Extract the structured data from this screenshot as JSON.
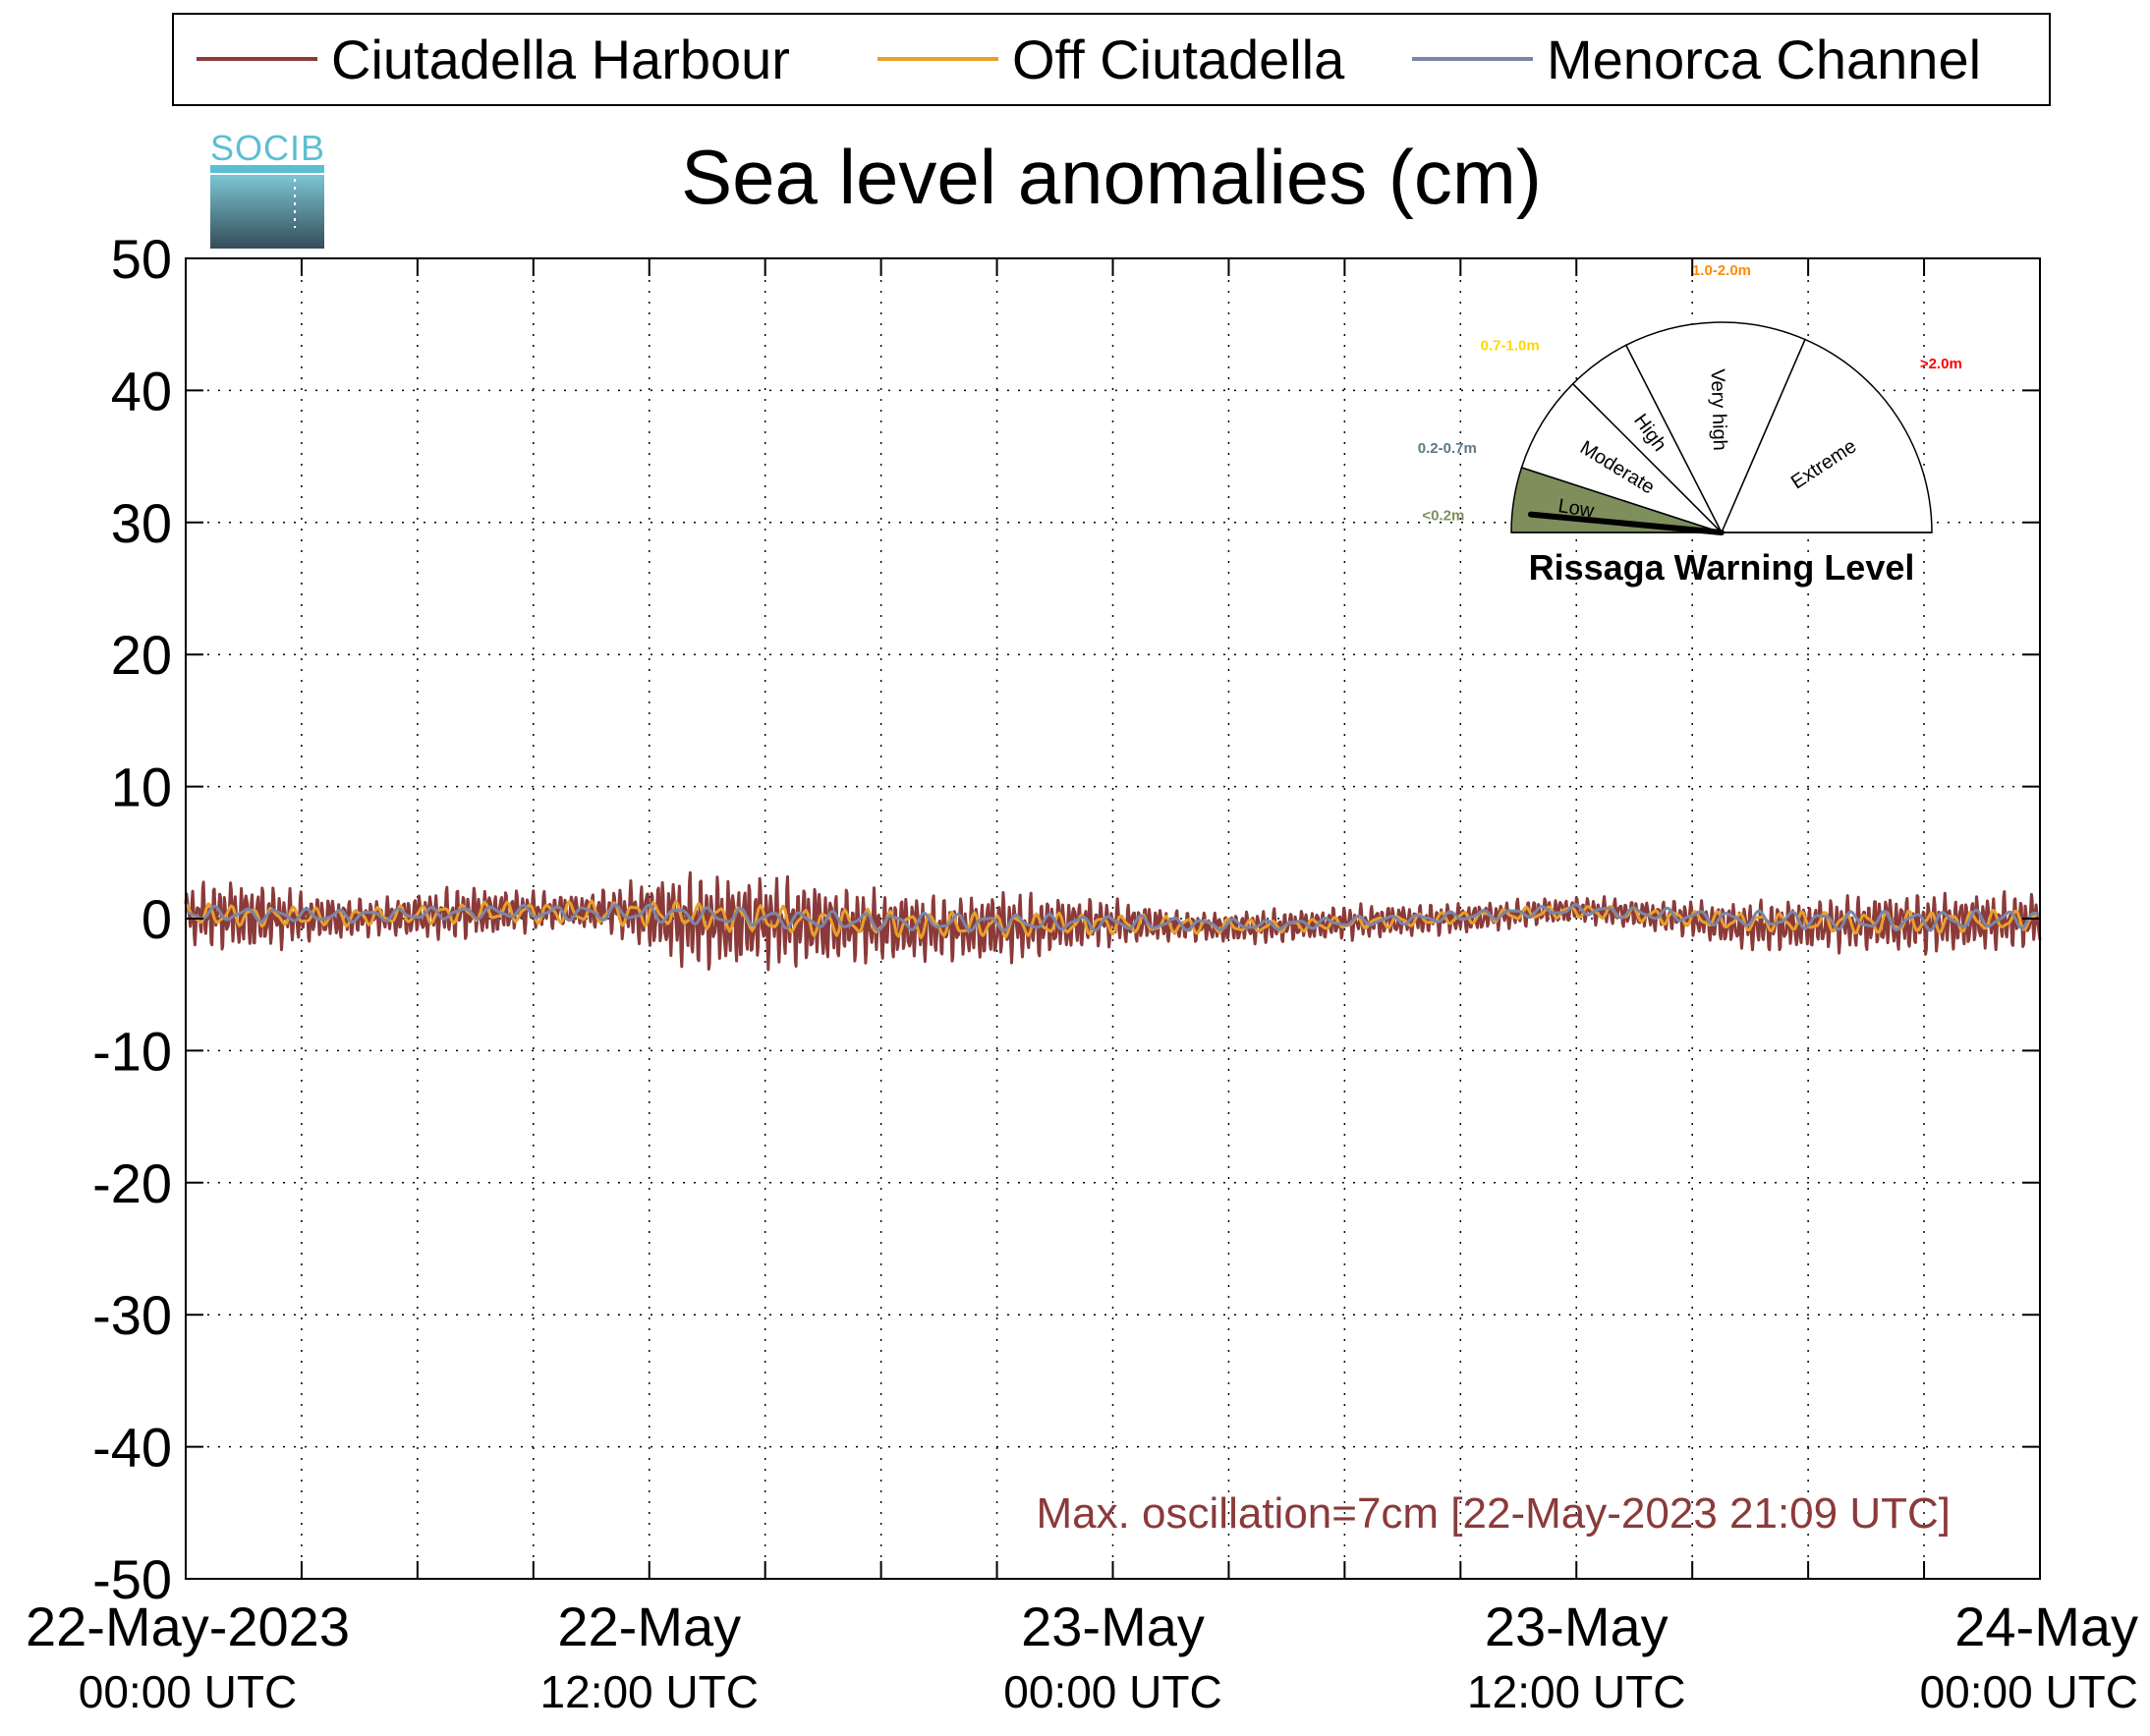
{
  "chart_data": {
    "type": "line",
    "title": "Sea level anomalies (cm)",
    "ylim": [
      -50,
      50
    ],
    "yticks": [
      50,
      40,
      30,
      20,
      10,
      0,
      -10,
      -20,
      -30,
      -40,
      -50
    ],
    "y_tick_labels": [
      "50",
      "40",
      "30",
      "20",
      "10",
      "0",
      "-10",
      "-20",
      "-30",
      "-40",
      "-50"
    ],
    "xlim_hours": [
      0,
      48
    ],
    "x_tick_hours": [
      0,
      3,
      6,
      9,
      12,
      15,
      18,
      21,
      24,
      27,
      30,
      33,
      36,
      39,
      42,
      45,
      48
    ],
    "x_labels": [
      {
        "hour": 0,
        "line1": "22-May-2023",
        "line2": "00:00 UTC"
      },
      {
        "hour": 12,
        "line1": "22-May",
        "line2": "12:00 UTC"
      },
      {
        "hour": 24,
        "line1": "23-May",
        "line2": "00:00 UTC"
      },
      {
        "hour": 36,
        "line1": "23-May",
        "line2": "12:00 UTC"
      },
      {
        "hour": 48,
        "line1": "24-May",
        "line2": "00:00 UTC"
      }
    ],
    "grid": true,
    "legend_position": "top",
    "series": [
      {
        "name": "Ciutadella Harbour",
        "color": "#8b3a3a",
        "x_hours": [
          0,
          1,
          2,
          3,
          4,
          5,
          6,
          7,
          8,
          9,
          10,
          11,
          12,
          13,
          14,
          15,
          16,
          17,
          18,
          19,
          20,
          21,
          22,
          23,
          24,
          25,
          26,
          27,
          28,
          29,
          30,
          31,
          32,
          33,
          34,
          35,
          36,
          37,
          38,
          39,
          40,
          41,
          42,
          43,
          44,
          45,
          46,
          47,
          48
        ],
        "amplitude_cm": [
          2.0,
          2.5,
          2.4,
          1.8,
          1.5,
          1.3,
          1.6,
          1.9,
          1.7,
          1.4,
          1.2,
          1.6,
          2.6,
          3.4,
          3.3,
          3.2,
          3.1,
          2.6,
          2.5,
          2.4,
          2.2,
          2.6,
          2.2,
          1.9,
          1.6,
          1.3,
          1.0,
          1.1,
          1.2,
          1.1,
          1.2,
          1.2,
          1.1,
          1.1,
          1.0,
          1.0,
          0.9,
          1.0,
          1.1,
          1.3,
          1.6,
          1.8,
          1.8,
          1.9,
          2.0,
          2.1,
          2.0,
          2.0,
          1.9
        ],
        "mean_cm": [
          0.3,
          0.2,
          0.1,
          0.1,
          0.0,
          0.1,
          0.2,
          0.4,
          0.5,
          0.6,
          0.6,
          0.6,
          0.3,
          -0.2,
          -0.3,
          -0.2,
          -0.4,
          -0.5,
          -0.6,
          -0.7,
          -0.8,
          -0.6,
          -0.6,
          -0.4,
          -0.3,
          -0.4,
          -0.6,
          -0.7,
          -0.6,
          -0.5,
          -0.3,
          -0.2,
          -0.1,
          0.0,
          0.2,
          0.5,
          0.7,
          0.5,
          0.2,
          0.0,
          -0.5,
          -0.6,
          -0.5,
          -0.4,
          -0.3,
          -0.4,
          -0.3,
          -0.2,
          -0.1
        ]
      },
      {
        "name": "Off Ciutadella",
        "color": "#e8a02a",
        "x_hours": [
          0,
          4,
          8,
          12,
          16,
          20,
          24,
          28,
          32,
          36,
          40,
          44,
          48
        ],
        "amplitude_cm": [
          0.9,
          0.7,
          0.8,
          1.0,
          1.1,
          1.0,
          0.8,
          0.5,
          0.5,
          0.5,
          0.7,
          0.9,
          0.8
        ],
        "mean_cm": [
          0.3,
          0.1,
          0.5,
          0.4,
          -0.2,
          -0.5,
          -0.4,
          -0.6,
          -0.1,
          0.6,
          -0.2,
          -0.3,
          -0.1
        ]
      },
      {
        "name": "Menorca Channel",
        "color": "#7a86a8",
        "x_hours": [
          0,
          4,
          8,
          12,
          16,
          20,
          24,
          28,
          32,
          36,
          40,
          44,
          48
        ],
        "amplitude_cm": [
          0.6,
          0.5,
          0.5,
          0.7,
          0.7,
          0.7,
          0.6,
          0.4,
          0.4,
          0.4,
          0.6,
          0.8,
          0.7
        ],
        "mean_cm": [
          0.4,
          0.2,
          0.5,
          0.4,
          -0.1,
          -0.3,
          -0.3,
          -0.5,
          0.0,
          0.7,
          0.0,
          -0.2,
          0.0
        ]
      }
    ],
    "annotation": "Max. oscillation=7cm [22-May-2023 21:09 UTC]",
    "annotation_color": "#8b3a3a"
  },
  "logo": {
    "text": "SOCIB",
    "color_top": "#5bbfd2",
    "color_bottom": "#344c58"
  },
  "gauge": {
    "title": "Rissaga Warning Level",
    "current_level": "Low",
    "needle_value": 0.03,
    "sectors": [
      {
        "name": "Low",
        "range": "<0.2m",
        "range_color": "#7e8f5c",
        "fill": "#7e8f5c",
        "start": 0.0,
        "end": 0.1
      },
      {
        "name": "Moderate",
        "range": "0.2-0.7m",
        "range_color": "#5a7a88",
        "fill": "#ffffff",
        "start": 0.1,
        "end": 0.25
      },
      {
        "name": "High",
        "range": "0.7-1.0m",
        "range_color": "#ffd700",
        "fill": "#ffffff",
        "start": 0.25,
        "end": 0.35
      },
      {
        "name": "Very high",
        "range": "1.0-2.0m",
        "range_color": "#ff8c00",
        "fill": "#ffffff",
        "start": 0.35,
        "end": 0.63
      },
      {
        "name": "Extreme",
        "range": ">2.0m",
        "range_color": "#ff0000",
        "fill": "#ffffff",
        "start": 0.63,
        "end": 1.0
      }
    ]
  }
}
